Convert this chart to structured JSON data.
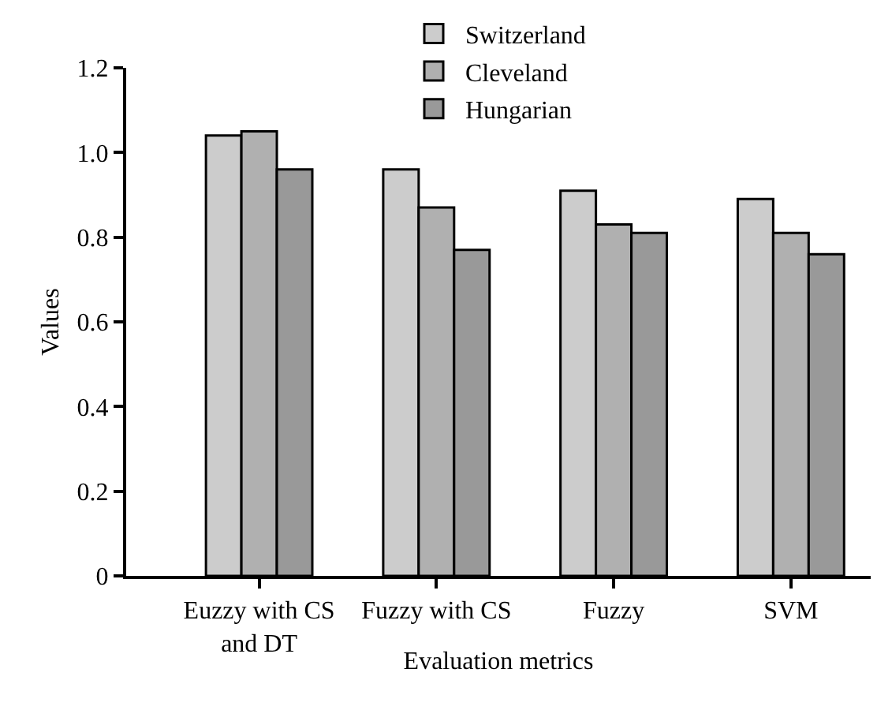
{
  "chart_data": {
    "type": "bar",
    "xlabel": "Evaluation metrics",
    "ylabel": "Values",
    "categories": [
      "Euzzy with CS and DT",
      "Fuzzy with CS",
      "Fuzzy",
      "SVM"
    ],
    "series": [
      {
        "name": "Switzerland",
        "color": "#cccccc",
        "values": [
          1.04,
          0.96,
          0.91,
          0.89
        ]
      },
      {
        "name": "Cleveland",
        "color": "#b0b0b0",
        "values": [
          1.05,
          0.87,
          0.83,
          0.81
        ]
      },
      {
        "name": "Hungarian",
        "color": "#999999",
        "values": [
          0.96,
          0.77,
          0.81,
          0.76
        ]
      }
    ],
    "ylim": [
      0,
      1.2
    ],
    "yticks": [
      0,
      0.2,
      0.4,
      0.6,
      0.8,
      {
        "value": 1,
        "label": "1.0"
      },
      1.2
    ],
    "grid": false,
    "legend": "top"
  }
}
